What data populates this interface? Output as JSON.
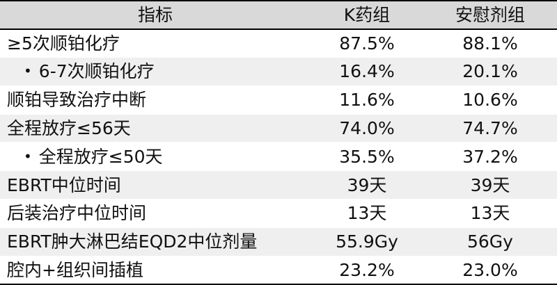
{
  "table": {
    "headers": {
      "metric": "指标",
      "k_group": "K药组",
      "placebo_group": "安慰剂组"
    },
    "bullet": "•",
    "rows": [
      {
        "label": "≥5次顺铂化疗",
        "k": "87.5%",
        "placebo": "88.1%"
      },
      {
        "label": "6-7次顺铂化疗",
        "k": "16.4%",
        "placebo": "20.1%"
      },
      {
        "label": "顺铂导致治疗中断",
        "k": "11.6%",
        "placebo": "10.6%"
      },
      {
        "label": "全程放疗≤56天",
        "k": "74.0%",
        "placebo": "74.7%"
      },
      {
        "label": "全程放疗≤50天",
        "k": "35.5%",
        "placebo": "37.2%"
      },
      {
        "label": "EBRT中位时间",
        "k": "39天",
        "placebo": "39天"
      },
      {
        "label": "后装治疗中位时间",
        "k": "13天",
        "placebo": "13天"
      },
      {
        "label": "EBRT肿大淋巴结EQD2中位剂量",
        "k": "55.9Gy",
        "placebo": "56Gy"
      },
      {
        "label": "腔内+组织间插植",
        "k": "23.2%",
        "placebo": "23.0%"
      }
    ]
  }
}
